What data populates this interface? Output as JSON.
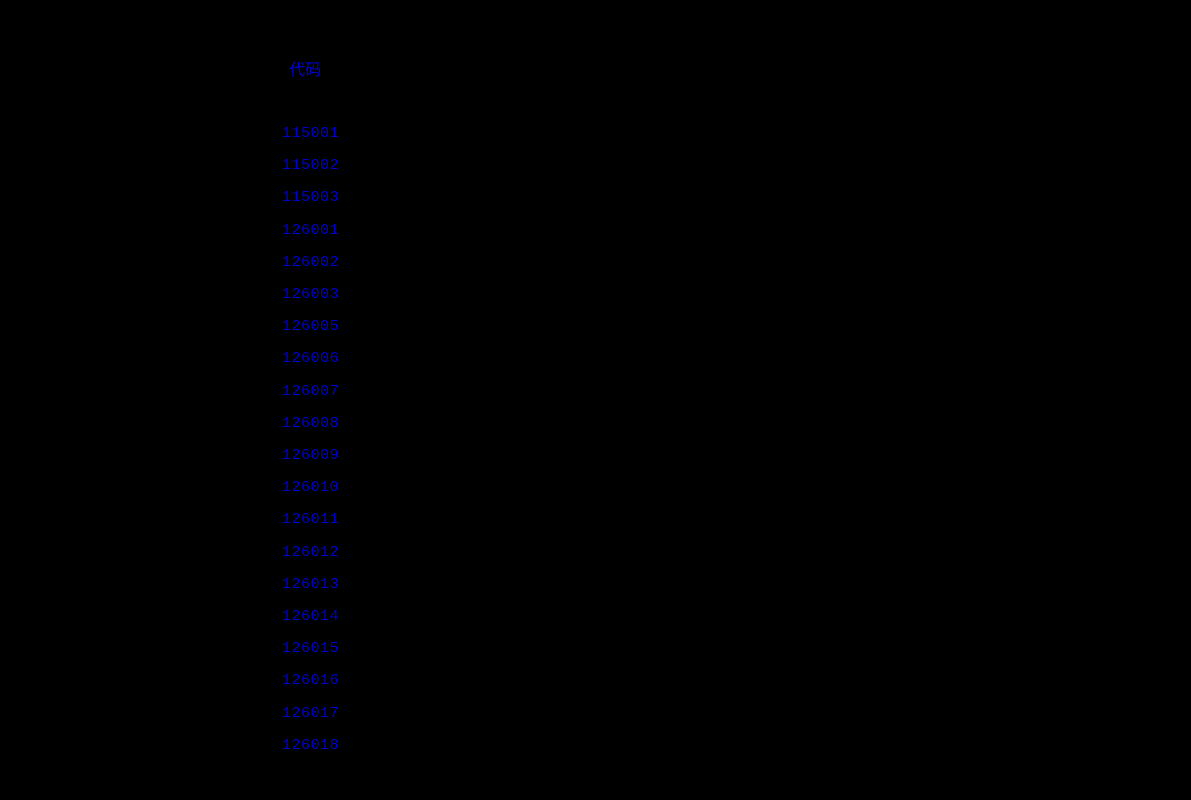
{
  "header": {
    "label": "代码"
  },
  "codes": [
    "115001",
    "115002",
    "115003",
    "126001",
    "126002",
    "126003",
    "126005",
    "126006",
    "126007",
    "126008",
    "126009",
    "126010",
    "126011",
    "126012",
    "126013",
    "126014",
    "126015",
    "126016",
    "126017",
    "126018"
  ],
  "colors": {
    "background": "#000000",
    "text": "#0000cc"
  }
}
